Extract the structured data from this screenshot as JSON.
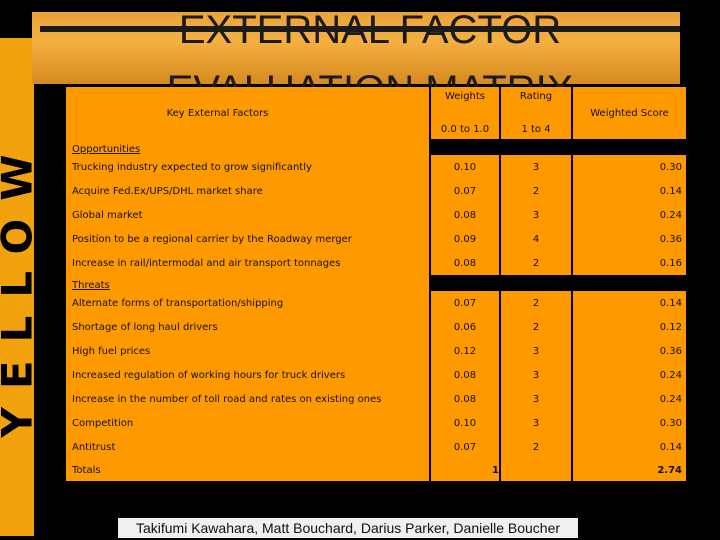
{
  "slide": {
    "title": "EXTERNAL FACTOR EVALUATION MATRIX",
    "side_logo_text": "YELLOW",
    "authors": "Takifumi Kawahara,  Matt Bouchard, Darius Parker, Danielle Boucher"
  },
  "table": {
    "header": {
      "factors": "Key External Factors",
      "weights": "Weights",
      "weights_range": "0.0 to 1.0",
      "rating": "Rating",
      "rating_range": "1 to 4",
      "weighted_score": "Weighted Score"
    },
    "opportunities": {
      "label": "Opportunities",
      "rows": [
        {
          "factor": "Trucking industry expected to grow significantly",
          "weight": "0.10",
          "rating": "3",
          "score": "0.30"
        },
        {
          "factor": "Acquire Fed.Ex/UPS/DHL market share",
          "weight": "0.07",
          "rating": "2",
          "score": "0.14"
        },
        {
          "factor": "Global market",
          "weight": "0.08",
          "rating": "3",
          "score": "0.24"
        },
        {
          "factor": "Position to be a regional carrier by the Roadway merger",
          "weight": "0.09",
          "rating": "4",
          "score": "0.36"
        },
        {
          "factor": "Increase in rail/intermodal and air transport tonnages",
          "weight": "0.08",
          "rating": "2",
          "score": "0.16"
        }
      ]
    },
    "threats": {
      "label": "Threats",
      "rows": [
        {
          "factor": "Alternate forms of transportation/shipping",
          "weight": "0.07",
          "rating": "2",
          "score": "0.14"
        },
        {
          "factor": "Shortage of long haul drivers",
          "weight": "0.06",
          "rating": "2",
          "score": "0.12"
        },
        {
          "factor": "High fuel prices",
          "weight": "0.12",
          "rating": "3",
          "score": "0.36"
        },
        {
          "factor": "Increased regulation of working hours for truck drivers",
          "weight": "0.08",
          "rating": "3",
          "score": "0.24"
        },
        {
          "factor": "Increase in the number of toll road and rates on existing ones",
          "weight": "0.08",
          "rating": "3",
          "score": "0.24"
        },
        {
          "factor": "Competition",
          "weight": "0.10",
          "rating": "3",
          "score": "0.30"
        },
        {
          "factor": "Antitrust",
          "weight": "0.07",
          "rating": "2",
          "score": "0.14"
        }
      ]
    },
    "totals": {
      "label": "Totals",
      "weight": "1",
      "score": "2.74"
    }
  }
}
